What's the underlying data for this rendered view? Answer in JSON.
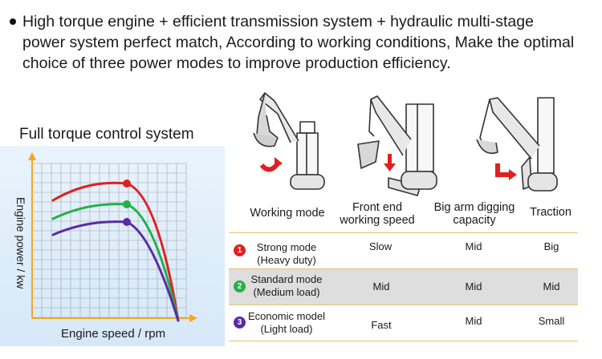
{
  "intro": {
    "text": "High torque engine + efficient transmission system + hydraulic multi-stage\npower system perfect match, According to working conditions, Make the optimal\nchoice of three power modes to improve production efficiency."
  },
  "chart": {
    "title": "Full torque control system",
    "ylabel": "Engine power / kw",
    "xlabel": "Engine speed / rpm",
    "colors": {
      "strong": "#e02020",
      "standard": "#22b04a",
      "economic": "#5a2aa8",
      "axis": "#f2a81d",
      "grid": "#9aa3ad"
    }
  },
  "chart_data": {
    "type": "line",
    "title": "Full torque control system",
    "xlabel": "Engine speed / rpm",
    "ylabel": "Engine power / kw",
    "grid": true,
    "series": [
      {
        "color": "#e02020",
        "peak_marker": true
      },
      {
        "color": "#22b04a",
        "peak_marker": true
      },
      {
        "color": "#5a2aa8",
        "peak_marker": true
      }
    ]
  },
  "columns": {
    "working_mode": "Working mode",
    "front_end": "Front end\nworking speed",
    "big_arm": "Big arm digging\ncapacity",
    "traction": "Traction"
  },
  "machine_icons": [
    "excavator-curl-icon",
    "excavator-lower-icon",
    "excavator-traction-icon"
  ],
  "rows": [
    {
      "num": "1",
      "color": "#e02020",
      "mode": "Strong mode\n(Heavy duty)",
      "speed": "Slow",
      "capacity": "Mid",
      "traction": "Big"
    },
    {
      "num": "2",
      "color": "#22b04a",
      "mode": "Standard mode\n(Medium load)",
      "speed": "Mid",
      "capacity": "Mid",
      "traction": "Mid"
    },
    {
      "num": "3",
      "color": "#5a2aa8",
      "mode": "Economic model\n(Light load)",
      "speed": "Fast",
      "capacity": "Mid",
      "traction": "Small"
    }
  ]
}
